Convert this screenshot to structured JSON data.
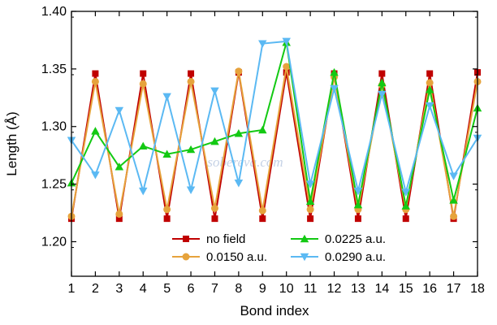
{
  "chart_data": {
    "type": "line",
    "xlabel": "Bond index",
    "ylabel": "Length (Å)",
    "xlim": [
      1,
      18
    ],
    "ylim": [
      1.17,
      1.4
    ],
    "x": [
      1,
      2,
      3,
      4,
      5,
      6,
      7,
      8,
      9,
      10,
      11,
      12,
      13,
      14,
      15,
      16,
      17,
      18
    ],
    "x_ticks": [
      "1",
      "2",
      "3",
      "4",
      "5",
      "6",
      "7",
      "8",
      "9",
      "10",
      "11",
      "12",
      "13",
      "14",
      "15",
      "16",
      "17",
      "18"
    ],
    "y_ticks": [
      1.2,
      1.25,
      1.3,
      1.35,
      1.4
    ],
    "y_tick_labels": [
      "1.20",
      "1.25",
      "1.30",
      "1.35",
      "1.40"
    ],
    "grid": false,
    "legend_position": "bottom-center",
    "watermark": "sobereva.com",
    "series": [
      {
        "name": "no field",
        "color": "#c00000",
        "marker": "square",
        "values": [
          1.22,
          1.346,
          1.22,
          1.346,
          1.22,
          1.346,
          1.22,
          1.347,
          1.22,
          1.347,
          1.22,
          1.346,
          1.22,
          1.346,
          1.22,
          1.346,
          1.22,
          1.347
        ]
      },
      {
        "name": "0.0150 a.u.",
        "color": "#e6a33c",
        "marker": "circle",
        "values": [
          1.222,
          1.339,
          1.224,
          1.337,
          1.228,
          1.339,
          1.229,
          1.348,
          1.227,
          1.352,
          1.228,
          1.343,
          1.228,
          1.336,
          1.228,
          1.338,
          1.222,
          1.339
        ]
      },
      {
        "name": "0.0225 a.u.",
        "color": "#13c913",
        "marker": "triangle-up",
        "values": [
          1.251,
          1.296,
          1.265,
          1.283,
          1.276,
          1.28,
          1.287,
          1.294,
          1.297,
          1.373,
          1.235,
          1.347,
          1.232,
          1.338,
          1.231,
          1.332,
          1.236,
          1.316
        ]
      },
      {
        "name": "0.0290 a.u.",
        "color": "#5bb9f3",
        "marker": "triangle-down",
        "values": [
          1.288,
          1.258,
          1.314,
          1.244,
          1.326,
          1.245,
          1.331,
          1.251,
          1.372,
          1.374,
          1.25,
          1.333,
          1.244,
          1.328,
          1.243,
          1.318,
          1.257,
          1.29
        ]
      }
    ]
  }
}
